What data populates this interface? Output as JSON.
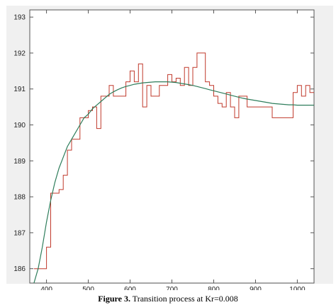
{
  "chart_data": {
    "type": "line",
    "title": "",
    "xlabel": "",
    "ylabel": "",
    "xlim": [
      360,
      1040
    ],
    "ylim": [
      185.6,
      193.2
    ],
    "xticks": [
      400,
      500,
      600,
      700,
      800,
      900,
      1000
    ],
    "yticks": [
      186,
      187,
      188,
      189,
      190,
      191,
      192,
      193
    ],
    "grid": false,
    "legend": "none",
    "series": [
      {
        "style": "step",
        "color": "#c0392b",
        "x": [
          370,
          380,
          390,
          400,
          410,
          420,
          430,
          440,
          450,
          460,
          470,
          480,
          490,
          500,
          510,
          520,
          530,
          540,
          550,
          560,
          570,
          580,
          590,
          600,
          610,
          620,
          630,
          640,
          650,
          660,
          670,
          680,
          690,
          700,
          710,
          720,
          730,
          740,
          750,
          760,
          770,
          780,
          790,
          800,
          810,
          820,
          830,
          840,
          850,
          860,
          870,
          880,
          890,
          900,
          910,
          920,
          930,
          940,
          950,
          960,
          970,
          980,
          990,
          1000,
          1010,
          1020,
          1030,
          1040
        ],
        "y": [
          186.0,
          186.0,
          186.0,
          186.6,
          188.1,
          188.1,
          188.2,
          188.6,
          189.3,
          189.6,
          189.6,
          190.2,
          190.2,
          190.4,
          190.5,
          189.9,
          190.8,
          190.8,
          191.1,
          190.8,
          190.8,
          190.8,
          191.2,
          191.5,
          191.2,
          191.7,
          190.5,
          191.1,
          190.8,
          190.8,
          191.1,
          191.1,
          191.4,
          191.2,
          191.3,
          191.1,
          191.6,
          191.1,
          191.6,
          192.0,
          192.0,
          191.2,
          191.1,
          190.8,
          190.6,
          190.5,
          190.9,
          190.5,
          190.2,
          190.8,
          190.8,
          190.5,
          190.5,
          190.5,
          190.5,
          190.5,
          190.5,
          190.2,
          190.2,
          190.2,
          190.2,
          190.2,
          190.9,
          191.1,
          190.8,
          191.1,
          190.9,
          190.9
        ]
      },
      {
        "style": "smooth",
        "color": "#2e7d5b",
        "x": [
          370,
          380,
          390,
          400,
          410,
          420,
          430,
          440,
          450,
          460,
          470,
          480,
          490,
          500,
          510,
          520,
          530,
          540,
          550,
          560,
          570,
          580,
          590,
          600,
          610,
          620,
          630,
          640,
          650,
          660,
          670,
          680,
          690,
          700,
          710,
          720,
          730,
          740,
          750,
          760,
          770,
          780,
          790,
          800,
          810,
          820,
          830,
          840,
          850,
          860,
          870,
          880,
          890,
          900,
          910,
          920,
          930,
          940,
          950,
          960,
          970,
          980,
          990,
          1000,
          1010,
          1020,
          1030,
          1040
        ],
        "y": [
          185.6,
          186.0,
          186.6,
          187.3,
          187.9,
          188.4,
          188.8,
          189.1,
          189.4,
          189.6,
          189.8,
          190.0,
          190.2,
          190.3,
          190.45,
          190.55,
          190.65,
          190.75,
          190.85,
          190.92,
          190.98,
          191.03,
          191.07,
          191.1,
          191.13,
          191.15,
          191.17,
          191.18,
          191.19,
          191.2,
          191.2,
          191.2,
          191.2,
          191.19,
          191.18,
          191.16,
          191.14,
          191.12,
          191.1,
          191.07,
          191.04,
          191.01,
          190.98,
          190.95,
          190.92,
          190.89,
          190.86,
          190.83,
          190.8,
          190.77,
          190.74,
          190.72,
          190.7,
          190.68,
          190.66,
          190.64,
          190.62,
          190.6,
          190.59,
          190.58,
          190.57,
          190.56,
          190.56,
          190.55,
          190.55,
          190.55,
          190.55,
          190.55
        ]
      }
    ]
  },
  "caption": {
    "label": "Figure 3.",
    "text": " Transition process at Kr=0.008"
  }
}
